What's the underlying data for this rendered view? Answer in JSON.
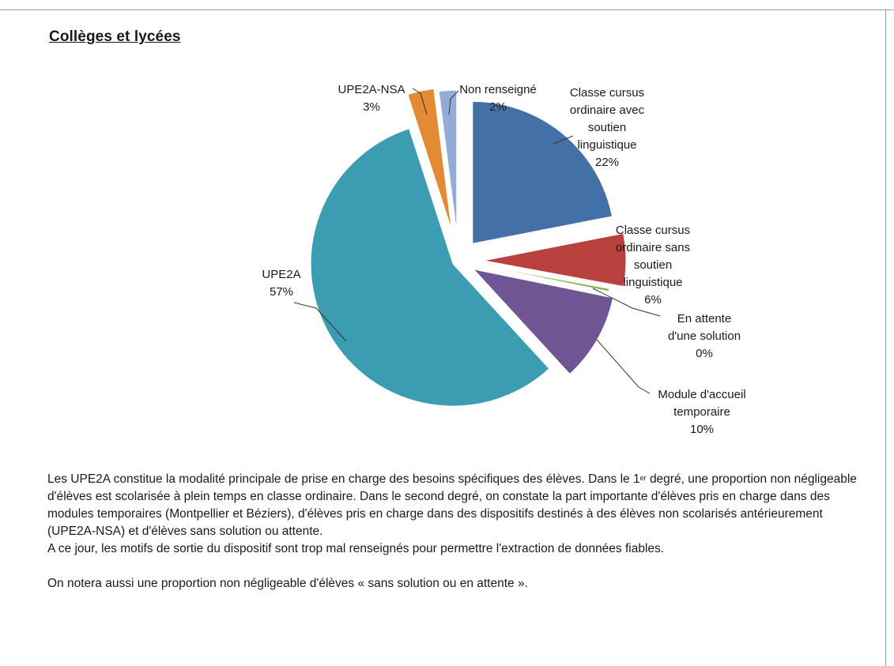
{
  "heading": "Collèges et lycées",
  "chart_data": {
    "type": "pie",
    "title": "",
    "slices": [
      {
        "label_lines": [
          "Classe cursus",
          "ordinaire avec",
          "soutien",
          "linguistique",
          "22%"
        ],
        "name": "Classe cursus ordinaire avec soutien linguistique",
        "value": 22,
        "color": "#4470a8"
      },
      {
        "label_lines": [
          "Classe cursus",
          "ordinaire sans",
          "soutien",
          "linguistique",
          "6%"
        ],
        "name": "Classe cursus ordinaire sans soutien linguistique",
        "value": 6,
        "color": "#b8413d"
      },
      {
        "label_lines": [
          "En attente",
          "d'une solution",
          "0%"
        ],
        "name": "En attente d'une solution",
        "value": 0.3,
        "color": "#84b04a"
      },
      {
        "label_lines": [
          "Module d'accueil",
          "temporaire",
          "10%"
        ],
        "name": "Module d'accueil temporaire",
        "value": 10,
        "color": "#6f5593"
      },
      {
        "label_lines": [
          "UPE2A",
          "57%"
        ],
        "name": "UPE2A",
        "value": 57,
        "color": "#3c9cb2"
      },
      {
        "label_lines": [
          "UPE2A-NSA",
          "3%"
        ],
        "name": "UPE2A-NSA",
        "value": 3,
        "color": "#e28a34"
      },
      {
        "label_lines": [
          "Non renseigné",
          "2%"
        ],
        "name": "Non renseigné",
        "value": 2,
        "color": "#93acd6"
      }
    ]
  },
  "paragraph": {
    "line1a": "Les UPE2A constitue la modalité principale de prise en charge des besoins spécifiques des élèves. Dans le 1",
    "line1sup": "er",
    "line1b": "degré, une proportion non négligeable d'élèves est scolarisée à plein temps en classe ordinaire. Dans le second degré, on constate la part importante d'élèves pris en charge dans des modules temporaires (Montpellier et Béziers), d'élèves pris en charge dans des dispositifs destinés à des élèves non scolarisés antérieurement (UPE2A-NSA) et d'élèves sans solution ou attente.",
    "line2": "A ce jour, les motifs de sortie du dispositif sont trop mal renseignés pour permettre l'extraction de données fiables.",
    "line3": "On notera aussi une proportion non négligeable d'élèves « sans solution ou en attente »."
  }
}
